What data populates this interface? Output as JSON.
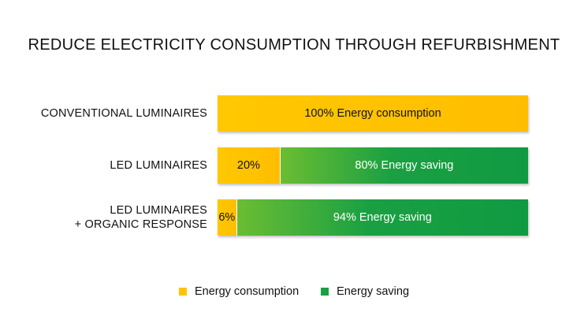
{
  "chart_data": {
    "type": "bar",
    "orientation": "horizontal",
    "stacked": true,
    "title": "REDUCE ELECTRICITY CONSUMPTION THROUGH REFURBISHMENT",
    "categories": [
      [
        "CONVENTIONAL LUMINAIRES"
      ],
      [
        "LED LUMINAIRES"
      ],
      [
        "LED LUMINAIRES",
        "+ ORGANIC RESPONSE"
      ]
    ],
    "series": [
      {
        "name": "Energy consumption",
        "color": "#ffc400",
        "values": [
          100,
          20,
          6
        ],
        "labels": [
          "100% Energy consumption",
          "20%",
          "6%"
        ]
      },
      {
        "name": "Energy saving",
        "color": "#1aa043",
        "values": [
          0,
          80,
          94
        ],
        "labels": [
          "",
          "80% Energy saving",
          "94% Energy saving"
        ]
      }
    ],
    "xlim": [
      0,
      100
    ],
    "grid": false,
    "legend": "bottom-center"
  }
}
